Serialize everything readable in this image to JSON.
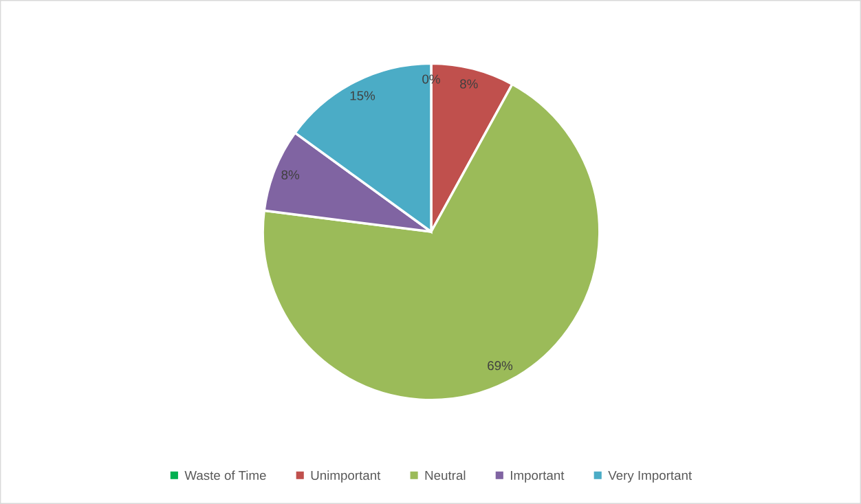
{
  "chart_data": {
    "type": "pie",
    "categories": [
      "Waste of Time",
      "Unimportant",
      "Neutral",
      "Important",
      "Very Important"
    ],
    "values": [
      0,
      8,
      69,
      8,
      15
    ],
    "colors": [
      "#00b050",
      "#c0504d",
      "#9bbb59",
      "#8064a2",
      "#4bacc6"
    ],
    "value_labels": [
      "0%",
      "8%",
      "69%",
      "8%",
      "15%"
    ],
    "legend": "bottom"
  }
}
